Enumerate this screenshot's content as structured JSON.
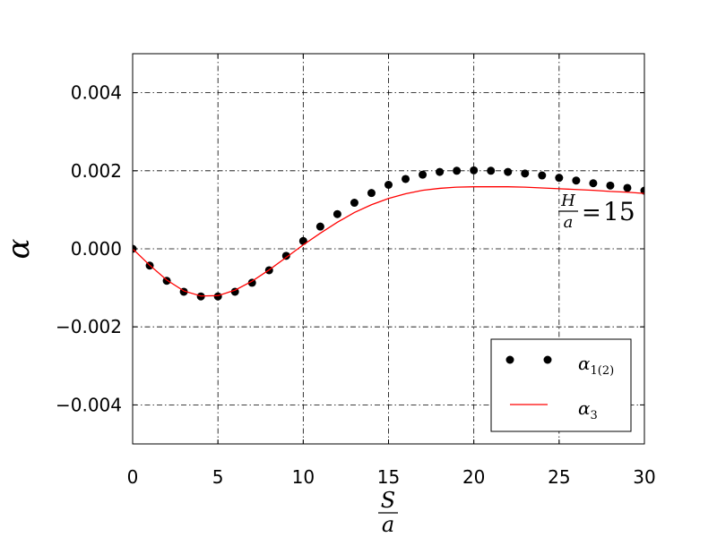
{
  "chart_data": {
    "type": "line",
    "xlabel": {
      "num": "S",
      "den": "a"
    },
    "ylabel": "α",
    "xlim": [
      0,
      30
    ],
    "ylim": [
      -0.005,
      0.005
    ],
    "grid": true,
    "legend_position": "bottom-right",
    "x_ticks": [
      "0",
      "5",
      "10",
      "15",
      "20",
      "25",
      "30"
    ],
    "y_ticks": [
      "0.004",
      "0.002",
      "0.000",
      "−0.002",
      "−0.004"
    ],
    "annotation": {
      "num": "H",
      "den": "a",
      "equals": "=",
      "value": "15"
    },
    "series": [
      {
        "name": "α",
        "subscript": "1(2)",
        "style": "markers",
        "color": "#000000",
        "x": [
          0,
          1,
          2,
          3,
          4,
          5,
          6,
          7,
          8,
          9,
          10,
          11,
          12,
          13,
          14,
          15,
          16,
          17,
          18,
          19,
          20,
          21,
          22,
          23,
          24,
          25,
          26,
          27,
          28,
          29,
          30
        ],
        "y": [
          0.0,
          -0.00043,
          -0.00082,
          -0.0011,
          -0.00122,
          -0.00122,
          -0.0011,
          -0.00087,
          -0.00055,
          -0.00018,
          0.0002,
          0.00057,
          0.00089,
          0.00118,
          0.00143,
          0.00164,
          0.00179,
          0.0019,
          0.00197,
          0.002,
          0.00201,
          0.002,
          0.00197,
          0.00193,
          0.00188,
          0.00182,
          0.00175,
          0.00168,
          0.00162,
          0.00156,
          0.00149
        ]
      },
      {
        "name": "α",
        "subscript": "3",
        "style": "line",
        "color": "#ff0000",
        "x": [
          0,
          1,
          2,
          3,
          4,
          5,
          6,
          7,
          8,
          9,
          10,
          11,
          12,
          13,
          14,
          15,
          16,
          17,
          18,
          19,
          20,
          21,
          22,
          23,
          24,
          25,
          26,
          27,
          28,
          29,
          30
        ],
        "y": [
          0.0,
          -0.00042,
          -0.0008,
          -0.00108,
          -0.00121,
          -0.0012,
          -0.00106,
          -0.00083,
          -0.00054,
          -0.00022,
          0.0001,
          0.0004,
          0.00068,
          0.00093,
          0.00113,
          0.00129,
          0.00141,
          0.0015,
          0.00155,
          0.00158,
          0.00159,
          0.00159,
          0.00159,
          0.00158,
          0.00156,
          0.00154,
          0.00152,
          0.0015,
          0.00147,
          0.00145,
          0.00142
        ]
      }
    ]
  }
}
